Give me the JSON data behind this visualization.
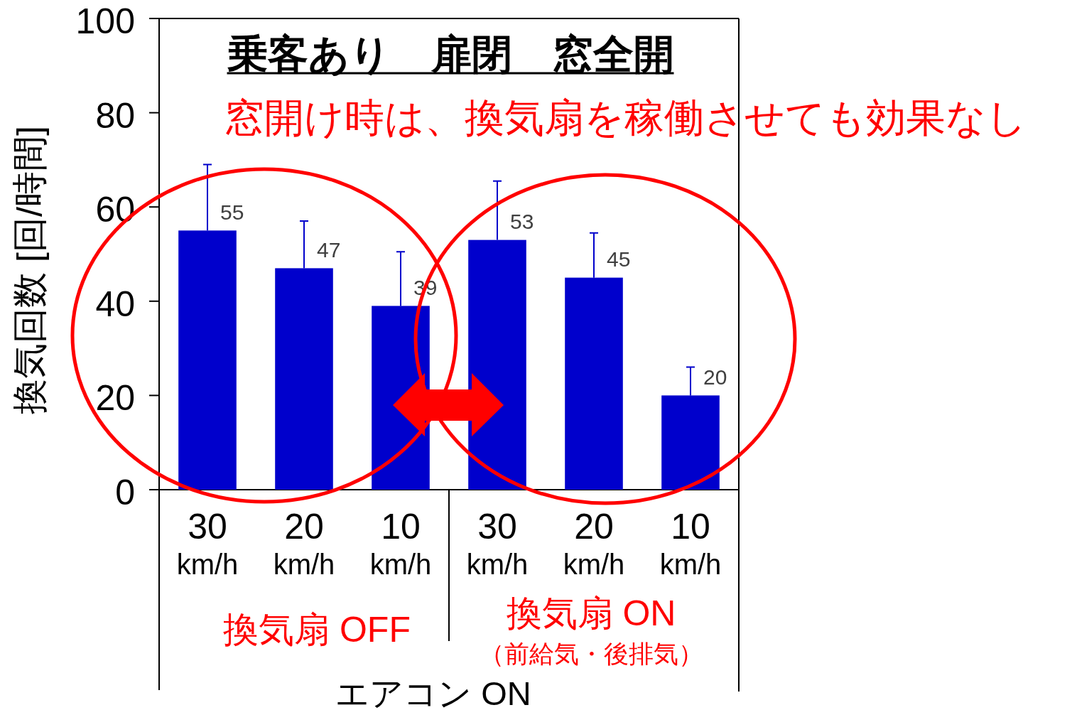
{
  "chart_data": {
    "type": "bar",
    "title": "乗客あり　扉閉　窓全開",
    "ylabel": "換気回数 [回/時間]",
    "xlabel": "エアコン ON",
    "categories": [
      "30 km/h",
      "20 km/h",
      "10 km/h",
      "30 km/h",
      "20 km/h",
      "10 km/h"
    ],
    "values": [
      55,
      47,
      39,
      53,
      45,
      20
    ],
    "color": "#0000cc",
    "errors": [
      [
        55,
        69
      ],
      [
        47,
        57
      ],
      [
        39,
        50.5
      ],
      [
        53,
        65.5
      ],
      [
        45,
        54.5
      ],
      [
        20,
        26
      ]
    ],
    "data_labels": true,
    "ylim": [
      0,
      100
    ],
    "yticks": [
      0,
      20,
      40,
      60,
      80,
      100
    ],
    "annotations": [
      "窓開け時は、換気扇を稼働させても効果なし",
      "換気扇 OFF",
      "換気扇 ON",
      "（前給気・後排気）"
    ]
  }
}
